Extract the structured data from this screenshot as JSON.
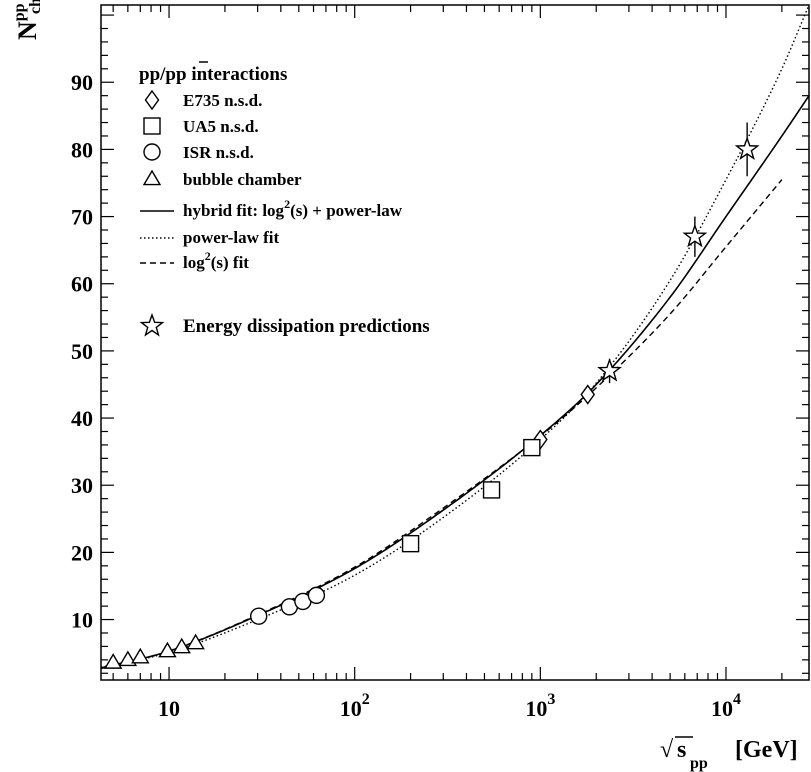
{
  "chart_data": {
    "type": "scatter",
    "ylabel": {
      "main": "N",
      "sup": "pp",
      "sub": "ch"
    },
    "xlabel": {
      "root": "√",
      "main": "s",
      "sub": "pp",
      "unit": "[GeV]"
    },
    "xscale": "log",
    "xlim": [
      4.3,
      28000
    ],
    "ylim": [
      1.0,
      101.5
    ],
    "grid": false,
    "legend_placement": "top-left",
    "x_ticks": [
      {
        "value": 10,
        "label": "10",
        "exp": ""
      },
      {
        "value": 100,
        "label": "10",
        "exp": "2"
      },
      {
        "value": 1000,
        "label": "10",
        "exp": "3"
      },
      {
        "value": 10000,
        "label": "10",
        "exp": "4"
      }
    ],
    "y_ticks": [
      {
        "value": 10,
        "label": "10"
      },
      {
        "value": 20,
        "label": "20"
      },
      {
        "value": 30,
        "label": "30"
      },
      {
        "value": 40,
        "label": "40"
      },
      {
        "value": 50,
        "label": "50"
      },
      {
        "value": 60,
        "label": "60"
      },
      {
        "value": 70,
        "label": "70"
      },
      {
        "value": 80,
        "label": "80"
      },
      {
        "value": 90,
        "label": "90"
      }
    ],
    "legend_title": {
      "part1": "pp/",
      "part2": "pp",
      "part3": " interactions"
    },
    "legend": [
      {
        "marker": "diamond",
        "text": "E735 n.s.d."
      },
      {
        "marker": "square",
        "text": "UA5 n.s.d."
      },
      {
        "marker": "circle",
        "text": "ISR n.s.d."
      },
      {
        "marker": "triangle",
        "text": "bubble chamber"
      },
      {
        "marker": "line-solid",
        "text_pre": "hybrid fit: log",
        "text_sup": "2",
        "text_post": "(s) + power-law"
      },
      {
        "marker": "line-dotted",
        "text": "power-law fit"
      },
      {
        "marker": "line-dashed",
        "text_pre": "log",
        "text_sup": "2",
        "text_post": "(s)  fit"
      },
      {
        "marker": "star",
        "text": "Energy dissipation predictions"
      }
    ],
    "series": [
      {
        "name": "E735 n.s.d.",
        "marker": "diamond",
        "points": [
          {
            "x": 1000,
            "y": 36.8
          },
          {
            "x": 1800,
            "y": 43.5
          }
        ]
      },
      {
        "name": "UA5 n.s.d.",
        "marker": "square",
        "points": [
          {
            "x": 200,
            "y": 21.3
          },
          {
            "x": 546,
            "y": 29.3
          },
          {
            "x": 900,
            "y": 35.6
          }
        ]
      },
      {
        "name": "ISR n.s.d.",
        "marker": "circle",
        "points": [
          {
            "x": 30.4,
            "y": 10.5
          },
          {
            "x": 44.5,
            "y": 11.9
          },
          {
            "x": 52.6,
            "y": 12.7
          },
          {
            "x": 62.2,
            "y": 13.6
          }
        ]
      },
      {
        "name": "bubble chamber",
        "marker": "triangle",
        "points": [
          {
            "x": 5.0,
            "y": 3.6
          },
          {
            "x": 6.0,
            "y": 4.0
          },
          {
            "x": 7.0,
            "y": 4.4
          },
          {
            "x": 9.8,
            "y": 5.3
          },
          {
            "x": 11.7,
            "y": 5.9
          },
          {
            "x": 13.9,
            "y": 6.5
          }
        ]
      },
      {
        "name": "Energy dissipation predictions",
        "marker": "star",
        "points": [
          {
            "x": 2360,
            "y": 47.0,
            "err": 1.8
          },
          {
            "x": 6800,
            "y": 67.0,
            "err": 3.0
          },
          {
            "x": 13000,
            "y": 80.0,
            "err": 4.0
          }
        ]
      }
    ],
    "curves": [
      {
        "name": "hybrid fit: log2(s) + power-law",
        "style": "solid",
        "points": [
          [
            4.3,
            2.8
          ],
          [
            10,
            5.3
          ],
          [
            30,
            10.6
          ],
          [
            100,
            17.6
          ],
          [
            300,
            26.3
          ],
          [
            1000,
            37.4
          ],
          [
            2000,
            45.0
          ],
          [
            5000,
            58.0
          ],
          [
            10000,
            70.0
          ],
          [
            20000,
            82.0
          ],
          [
            28000,
            88.0
          ]
        ]
      },
      {
        "name": "power-law fit",
        "style": "dotted",
        "points": [
          [
            4.3,
            2.9
          ],
          [
            10,
            5.1
          ],
          [
            30,
            10.0
          ],
          [
            100,
            16.6
          ],
          [
            300,
            25.2
          ],
          [
            1000,
            36.8
          ],
          [
            2000,
            45.2
          ],
          [
            5000,
            60.5
          ],
          [
            10000,
            75.5
          ],
          [
            20000,
            92.0
          ],
          [
            28000,
            101.5
          ]
        ]
      },
      {
        "name": "log2(s) fit",
        "style": "dashed",
        "points": [
          [
            4.3,
            2.7
          ],
          [
            10,
            5.3
          ],
          [
            30,
            10.7
          ],
          [
            100,
            17.8
          ],
          [
            300,
            26.6
          ],
          [
            1000,
            37.3
          ],
          [
            2000,
            44.5
          ],
          [
            5000,
            55.5
          ],
          [
            10000,
            65.5
          ],
          [
            20000,
            75.5
          ]
        ]
      }
    ]
  }
}
